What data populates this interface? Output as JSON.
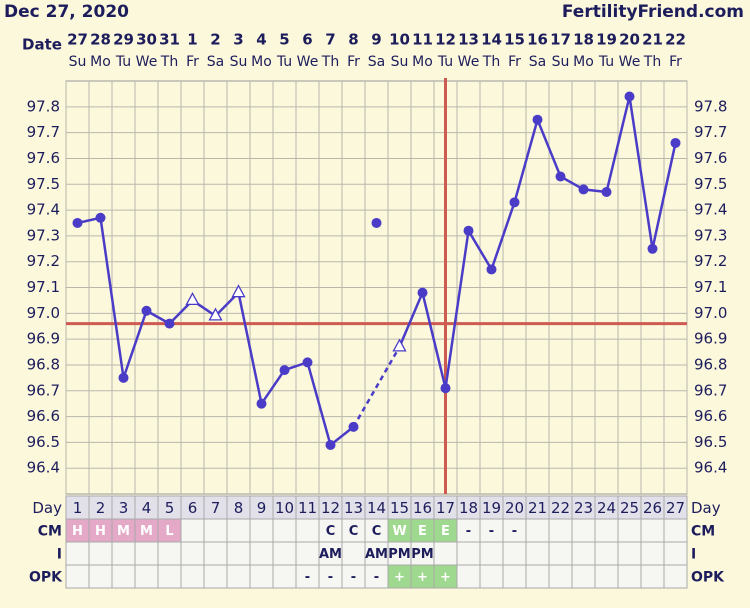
{
  "header": {
    "date": "Dec 27, 2020",
    "site": "FertilityFriend.com"
  },
  "chart_data": {
    "type": "line",
    "x_label": "Date",
    "dates": [
      "27",
      "28",
      "29",
      "30",
      "31",
      "1",
      "2",
      "3",
      "4",
      "5",
      "6",
      "7",
      "8",
      "9",
      "10",
      "11",
      "12",
      "13",
      "14",
      "15",
      "16",
      "17",
      "18",
      "19",
      "20",
      "21",
      "22"
    ],
    "weekdays": [
      "Su",
      "Mo",
      "Tu",
      "We",
      "Th",
      "Fr",
      "Sa",
      "Su",
      "Mo",
      "Tu",
      "We",
      "Th",
      "Fr",
      "Sa",
      "Su",
      "Mo",
      "Tu",
      "We",
      "Th",
      "Fr",
      "Sa",
      "Su",
      "Mo",
      "Tu",
      "We",
      "Th",
      "Fr"
    ],
    "values": [
      97.35,
      97.37,
      96.75,
      97.01,
      96.96,
      97.05,
      96.99,
      97.08,
      96.65,
      96.78,
      96.81,
      96.49,
      96.56,
      97.35,
      96.87,
      97.08,
      96.71,
      97.32,
      97.17,
      97.43,
      97.75,
      97.53,
      97.48,
      97.47,
      97.84,
      97.25,
      97.66
    ],
    "markers": [
      "circle",
      "circle",
      "circle",
      "circle",
      "circle",
      "open-triangle",
      "open-triangle",
      "open-triangle",
      "circle",
      "circle",
      "circle",
      "circle",
      "circle",
      "discarded",
      "open-triangle",
      "circle",
      "circle",
      "circle",
      "circle",
      "circle",
      "circle",
      "circle",
      "circle",
      "circle",
      "circle",
      "circle",
      "circle"
    ],
    "color": "#4b3cc8",
    "ylim": [
      96.3,
      97.9
    ],
    "yticks": [
      96.4,
      96.5,
      96.6,
      96.7,
      96.8,
      96.9,
      {
        "value": 97,
        "label": "97.0"
      },
      97.1,
      97.2,
      97.3,
      97.4,
      97.5,
      97.6,
      97.7,
      97.8
    ],
    "coverline": 96.96,
    "coverline_color": "#cd5b52",
    "ovulation_day": 17,
    "grid": true
  },
  "rows": {
    "day": {
      "label": "Day",
      "values": [
        1,
        2,
        3,
        4,
        5,
        6,
        7,
        8,
        9,
        10,
        11,
        12,
        13,
        14,
        15,
        16,
        17,
        18,
        19,
        20,
        21,
        22,
        23,
        24,
        25,
        26,
        27
      ]
    },
    "cm": {
      "label": "CM",
      "values": [
        "H",
        "H",
        "M",
        "M",
        "L",
        null,
        null,
        null,
        null,
        null,
        null,
        "C",
        "C",
        "C",
        "W",
        "E",
        "E",
        "-",
        "-",
        "-",
        null,
        null,
        null,
        null,
        null,
        null,
        null
      ]
    },
    "i": {
      "label": "I",
      "values": [
        null,
        null,
        null,
        null,
        null,
        null,
        null,
        null,
        null,
        null,
        null,
        "AM",
        null,
        "AM",
        "PM",
        "PM",
        null,
        null,
        null,
        null,
        null,
        null,
        null,
        null,
        null,
        null,
        null
      ]
    },
    "opk": {
      "label": "OPK",
      "values": [
        null,
        null,
        null,
        null,
        null,
        null,
        null,
        null,
        null,
        null,
        "-",
        "-",
        "-",
        "-",
        "+",
        "+",
        "+",
        null,
        null,
        null,
        null,
        null,
        null,
        null,
        null,
        null,
        null
      ]
    }
  },
  "cell_colors": {
    "H": "#e3a9c6",
    "M": "#e3a9c6",
    "L": "#e3a9c6",
    "W": "#9fd98f",
    "E": "#9fd98f",
    "+": "#9fd98f"
  }
}
